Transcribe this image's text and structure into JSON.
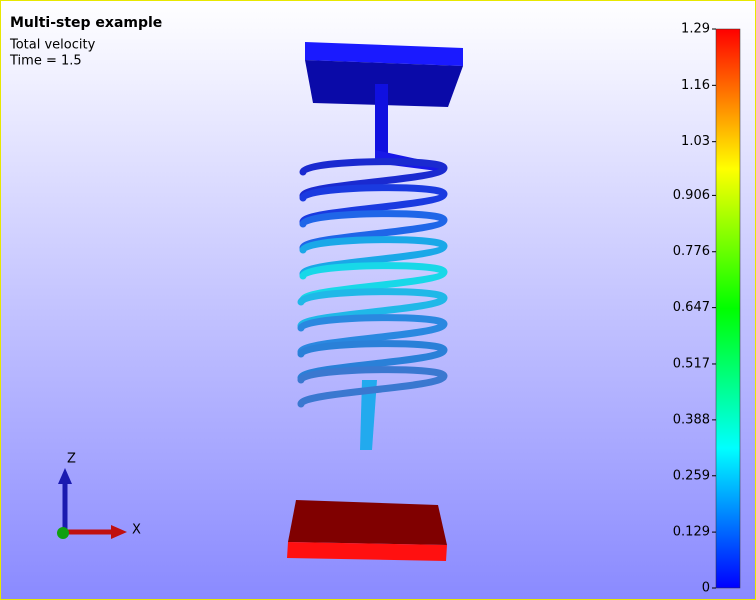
{
  "header": {
    "title": "Multi-step example",
    "quantity": "Total velocity",
    "time": "Time = 1.5"
  },
  "colorbar": {
    "range": [
      0,
      1.29
    ],
    "ticks": [
      1.29,
      1.16,
      1.03,
      0.906,
      0.776,
      0.647,
      0.517,
      0.388,
      0.259,
      0.129,
      0
    ]
  },
  "axes": {
    "z": "Z",
    "x": "X"
  }
}
